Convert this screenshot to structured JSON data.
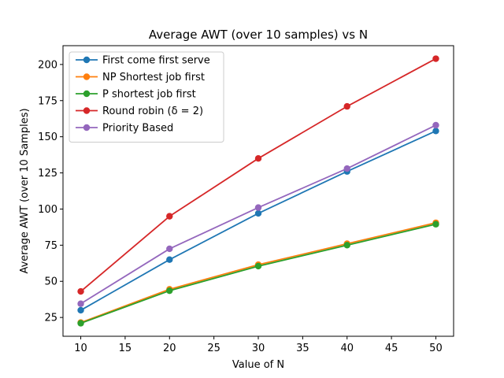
{
  "chart_data": {
    "type": "line",
    "title": "Average AWT (over 10 samples) vs N",
    "xlabel": "Value of N",
    "ylabel": "Average AWT (over 10 Samples)",
    "x": [
      10,
      20,
      30,
      40,
      50
    ],
    "xlim": [
      8,
      52
    ],
    "ylim": [
      12,
      213
    ],
    "xticks": [
      10,
      15,
      20,
      25,
      30,
      35,
      40,
      45,
      50
    ],
    "yticks": [
      25,
      50,
      75,
      100,
      125,
      150,
      175,
      200
    ],
    "grid": false,
    "legend_position": "top-left",
    "series": [
      {
        "name": "First come first serve",
        "color": "#1f77b4",
        "values": [
          30,
          65,
          97,
          126,
          154
        ]
      },
      {
        "name": "NP Shortest job first",
        "color": "#ff7f0e",
        "values": [
          21.5,
          44.5,
          61.5,
          76,
          90.5
        ]
      },
      {
        "name": "P shortest job first",
        "color": "#2ca02c",
        "values": [
          21,
          43.5,
          60.5,
          75,
          89.5
        ]
      },
      {
        "name": "Round robin (δ = 2)",
        "color": "#d62728",
        "values": [
          43,
          95,
          135,
          171,
          204
        ]
      },
      {
        "name": "Priority Based",
        "color": "#9467bd",
        "values": [
          34.5,
          72.5,
          101,
          128,
          158
        ]
      }
    ]
  }
}
